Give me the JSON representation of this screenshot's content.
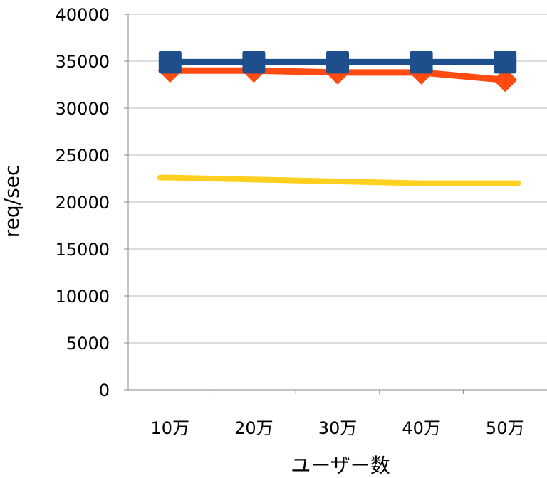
{
  "chart_data": {
    "type": "line",
    "title": "",
    "xlabel": "ユーザー数",
    "ylabel": "req/sec",
    "categories": [
      "10万",
      "20万",
      "30万",
      "40万",
      "50万"
    ],
    "ylim": [
      0,
      40000
    ],
    "yticks": [
      0,
      5000,
      10000,
      15000,
      20000,
      25000,
      30000,
      35000,
      40000
    ],
    "grid": true,
    "legend": "none",
    "series": [
      {
        "color": "#1f4e8c",
        "marker": "square",
        "values": [
          34900,
          34900,
          34900,
          34900,
          34900
        ]
      },
      {
        "color": "#ff4a12",
        "marker": "diamond",
        "values": [
          34000,
          34000,
          33800,
          33800,
          33000
        ]
      },
      {
        "color": "#ffd020",
        "marker": "none",
        "values": [
          22600,
          22400,
          22200,
          22000,
          22000
        ]
      }
    ]
  }
}
